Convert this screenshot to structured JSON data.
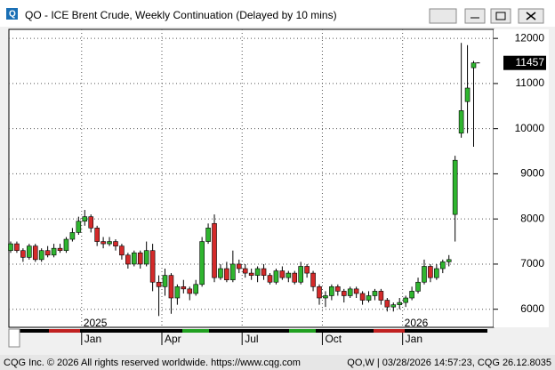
{
  "window_title": "QO - ICE Brent Crude, Weekly Continuation (Delayed by 10 mins)",
  "footer_left": "CQG Inc. © 2026 All rights reserved worldwide. https://www.cqg.com",
  "footer_right": "QO,W | 03/28/2026 14:57:23, CQG 26.12.8035",
  "chart_data": {
    "type": "candlestick",
    "up_color": "#2fb52f",
    "down_color": "#d42a2a",
    "categories": [
      null,
      null,
      null,
      null,
      null,
      null,
      null,
      null,
      null,
      null,
      null,
      null,
      "Jan",
      null,
      null,
      null,
      null,
      null,
      null,
      null,
      null,
      null,
      null,
      null,
      null,
      "Apr",
      null,
      null,
      null,
      null,
      null,
      null,
      null,
      null,
      null,
      null,
      null,
      null,
      "Jul",
      null,
      null,
      null,
      null,
      null,
      null,
      null,
      null,
      null,
      null,
      null,
      null,
      "Oct",
      null,
      null,
      null,
      null,
      null,
      null,
      null,
      null,
      null,
      null,
      null,
      null,
      "Jan",
      null,
      null,
      null,
      null,
      null,
      null,
      null,
      null,
      null,
      null,
      null
    ],
    "category_years": [
      null,
      null,
      null,
      null,
      null,
      null,
      null,
      null,
      null,
      null,
      null,
      null,
      "2025",
      null,
      null,
      null,
      null,
      null,
      null,
      null,
      null,
      null,
      null,
      null,
      null,
      null,
      null,
      null,
      null,
      null,
      null,
      null,
      null,
      null,
      null,
      null,
      null,
      null,
      null,
      null,
      null,
      null,
      null,
      null,
      null,
      null,
      null,
      null,
      null,
      null,
      null,
      null,
      null,
      null,
      null,
      null,
      null,
      null,
      null,
      null,
      null,
      null,
      null,
      null,
      "2026",
      null,
      null,
      null,
      null,
      null,
      null,
      null,
      null,
      null,
      null,
      null
    ],
    "open": [
      7300,
      7450,
      7300,
      7150,
      7400,
      7100,
      7300,
      7200,
      7350,
      7300,
      7550,
      7700,
      7950,
      8050,
      7800,
      7500,
      7450,
      7500,
      7400,
      7200,
      7000,
      7250,
      7000,
      7300,
      6600,
      6500,
      6750,
      6250,
      6500,
      6450,
      6350,
      6550,
      7500,
      7900,
      6700,
      6900,
      6650,
      7000,
      6900,
      6800,
      6750,
      6900,
      6750,
      6600,
      6850,
      6700,
      6800,
      6600,
      6950,
      6800,
      6500,
      6250,
      6300,
      6500,
      6400,
      6300,
      6450,
      6350,
      6200,
      6300,
      6400,
      6200,
      6050,
      6100,
      6150,
      6250,
      6400,
      6600,
      6950,
      6700,
      6900,
      7050,
      8100,
      9900,
      10600,
      11350
    ],
    "high": [
      7500,
      7500,
      7350,
      7450,
      7450,
      7350,
      7400,
      7450,
      7450,
      7600,
      7800,
      8050,
      8200,
      8100,
      7850,
      7600,
      7600,
      7550,
      7450,
      7250,
      7300,
      7300,
      7500,
      7450,
      6750,
      6900,
      6800,
      6550,
      6650,
      6500,
      6650,
      7600,
      7900,
      8100,
      7000,
      7050,
      7300,
      7100,
      7000,
      6900,
      6950,
      7000,
      6800,
      6900,
      6950,
      6850,
      6850,
      7050,
      7000,
      6850,
      6550,
      6400,
      6550,
      6550,
      6450,
      6500,
      6500,
      6400,
      6400,
      6450,
      6450,
      6250,
      6150,
      6250,
      6300,
      6500,
      6700,
      7100,
      7000,
      7000,
      7100,
      7200,
      9400,
      11900,
      11850,
      11500
    ],
    "low": [
      7250,
      7250,
      7050,
      7100,
      7050,
      7050,
      7150,
      7150,
      7250,
      7250,
      7500,
      7650,
      7850,
      7700,
      7400,
      7350,
      7400,
      7300,
      7100,
      6900,
      6950,
      6900,
      6950,
      6400,
      5850,
      6300,
      5900,
      6100,
      6350,
      6200,
      6300,
      6500,
      7450,
      6600,
      6650,
      6600,
      6600,
      6800,
      6700,
      6650,
      6600,
      6650,
      6550,
      6550,
      6650,
      6600,
      6550,
      6550,
      6700,
      6400,
      6100,
      6050,
      6200,
      6300,
      6150,
      6250,
      6250,
      6100,
      6150,
      6200,
      6100,
      5950,
      5950,
      6000,
      6050,
      6200,
      6350,
      6550,
      6600,
      6650,
      6800,
      6950,
      7500,
      9800,
      9900,
      9600
    ],
    "close": [
      7450,
      7300,
      7150,
      7400,
      7100,
      7300,
      7200,
      7350,
      7300,
      7550,
      7700,
      7950,
      8050,
      7800,
      7500,
      7450,
      7500,
      7400,
      7200,
      7000,
      7250,
      7000,
      7300,
      6600,
      6500,
      6750,
      6250,
      6500,
      6450,
      6350,
      6550,
      7500,
      7800,
      6700,
      6900,
      6650,
      7000,
      6900,
      6800,
      6750,
      6900,
      6750,
      6600,
      6850,
      6700,
      6800,
      6600,
      6950,
      6800,
      6500,
      6250,
      6300,
      6500,
      6400,
      6300,
      6450,
      6350,
      6200,
      6300,
      6400,
      6200,
      6050,
      6100,
      6150,
      6250,
      6400,
      6600,
      6950,
      6700,
      6900,
      7050,
      7100,
      9300,
      10400,
      10900,
      11457
    ],
    "ylim": [
      5600,
      12200
    ],
    "yticks": [
      6000,
      7000,
      8000,
      9000,
      10000,
      11000,
      12000
    ],
    "grid": true
  }
}
